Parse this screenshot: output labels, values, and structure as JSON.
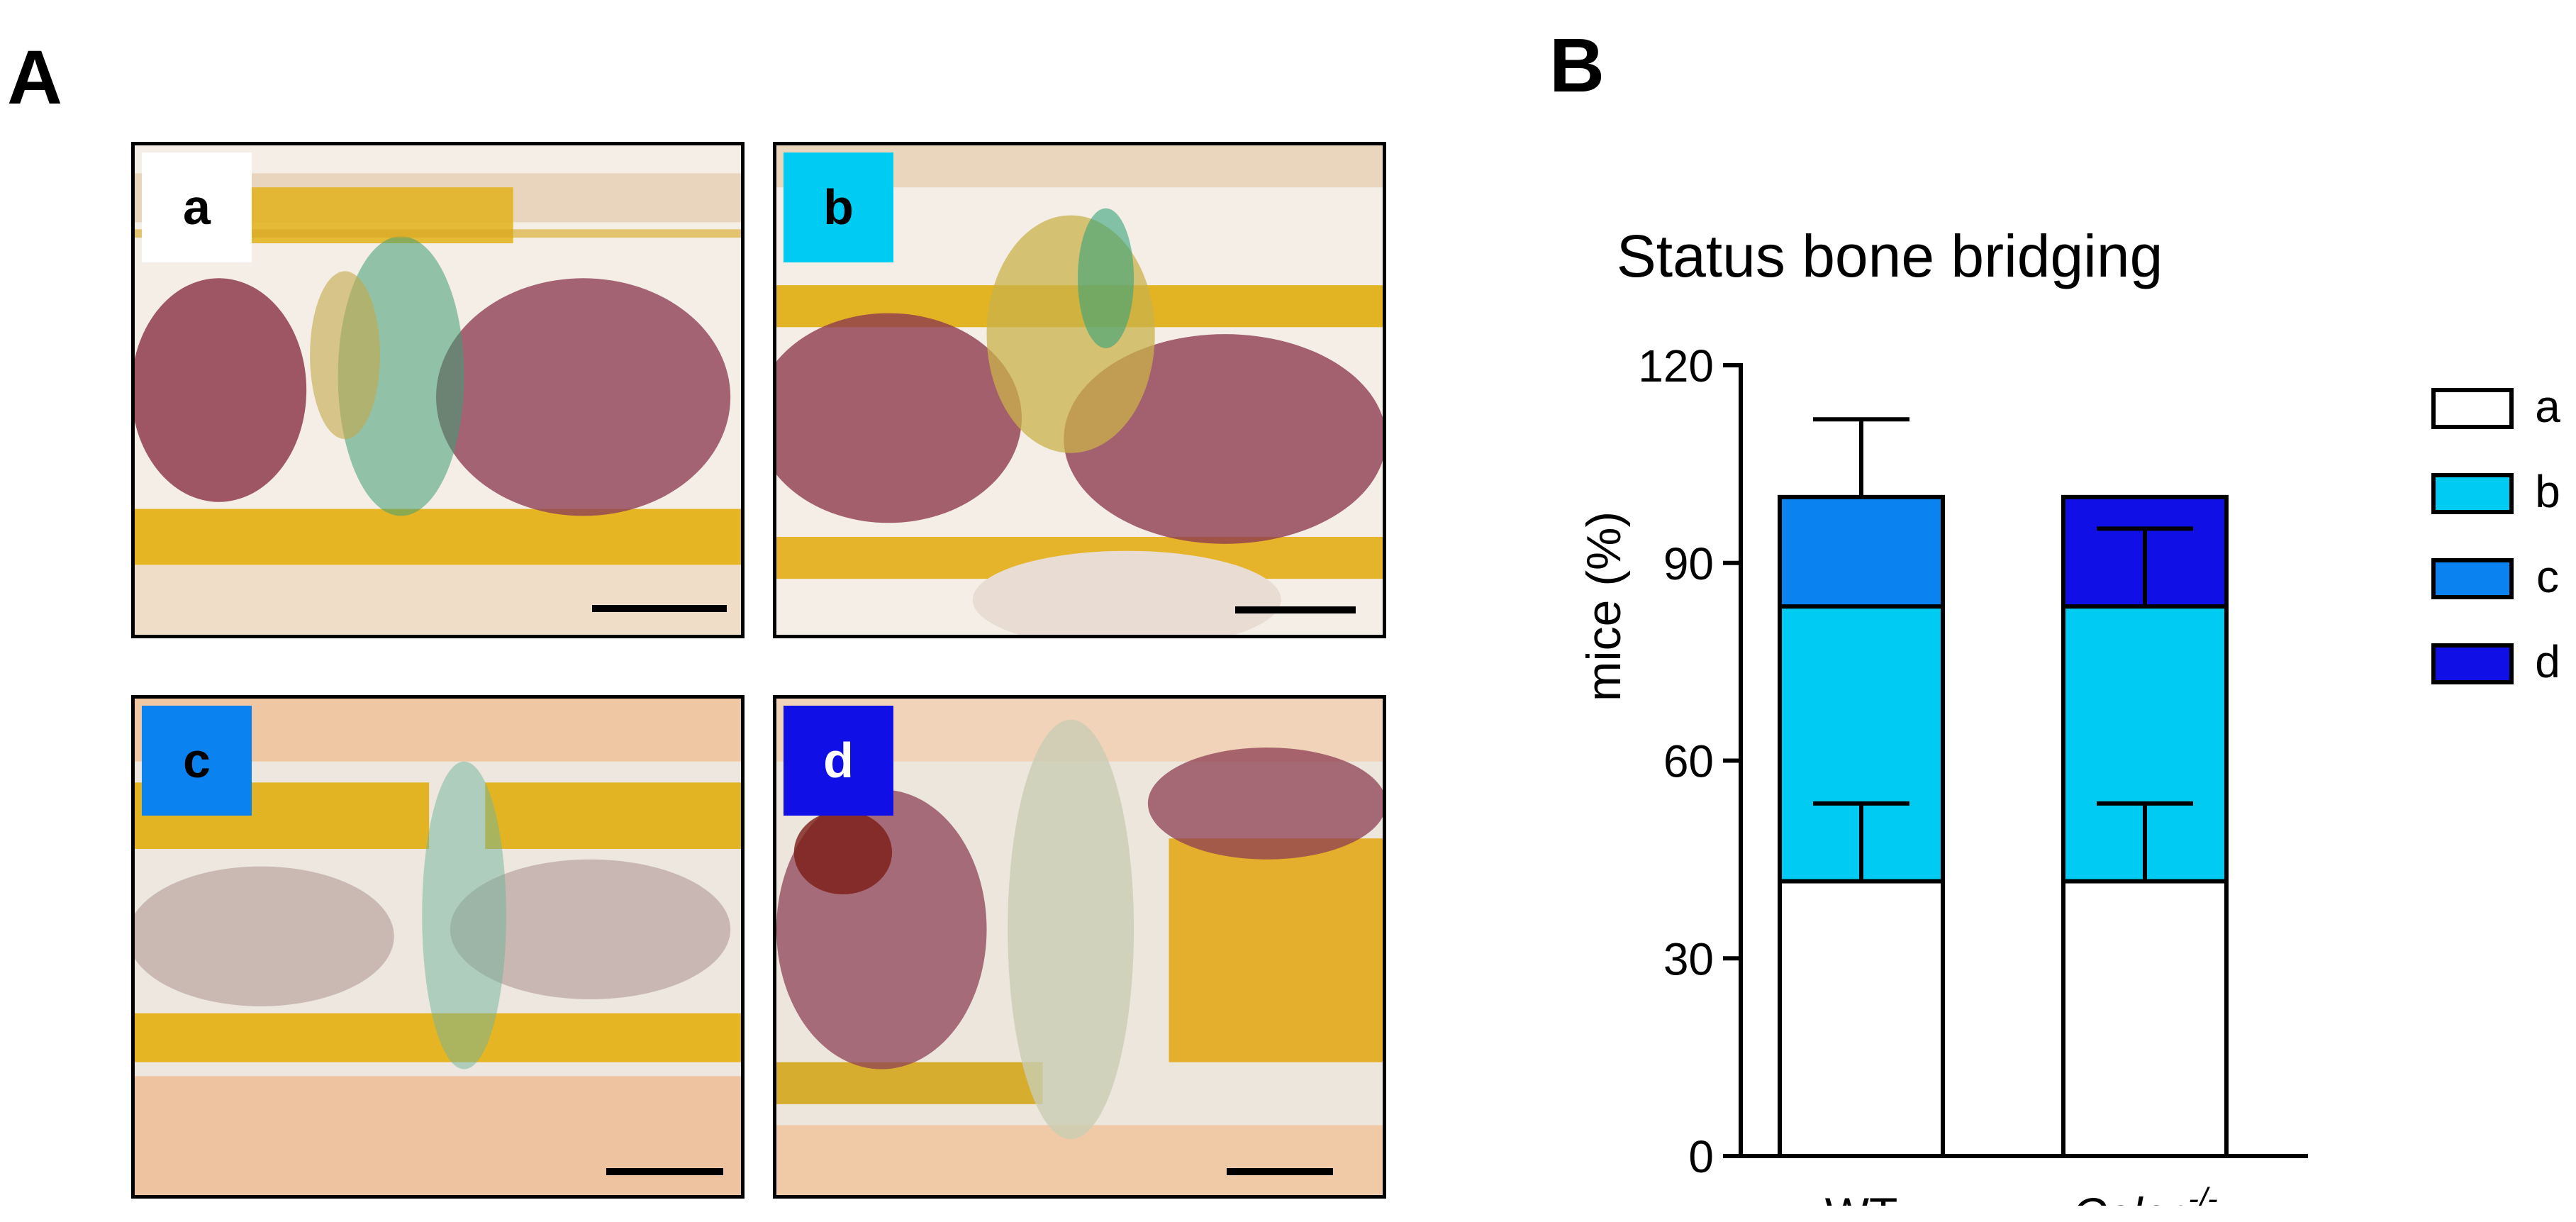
{
  "panels": {
    "a_label": "A",
    "b_label": "B"
  },
  "micrographs": [
    {
      "label": "a",
      "tile_color": "#ffffff",
      "text_color": "#000000"
    },
    {
      "label": "b",
      "tile_color": "#00cbf2",
      "text_color": "#000000"
    },
    {
      "label": "c",
      "tile_color": "#0a82f0",
      "text_color": "#000000"
    },
    {
      "label": "d",
      "tile_color": "#1010e6",
      "text_color": "#ffffff"
    }
  ],
  "chart_data": {
    "type": "bar",
    "stacked": true,
    "title": "Status bone bridging",
    "ylabel": "mice (%)",
    "xlabel": "",
    "ylim": [
      0,
      120
    ],
    "yticks": [
      "0",
      "30",
      "60",
      "90",
      "120"
    ],
    "categories": [
      {
        "text": "WT",
        "superscript": ""
      },
      {
        "text": "Calcr",
        "superscript": "-/-"
      }
    ],
    "series": [
      {
        "name": "a",
        "color": "#ffffff",
        "values": [
          41.7,
          41.7
        ]
      },
      {
        "name": "b",
        "color": "#00cbf2",
        "values": [
          41.7,
          41.7
        ]
      },
      {
        "name": "c",
        "color": "#0a82f0",
        "values": [
          16.6,
          0
        ]
      },
      {
        "name": "d",
        "color": "#1010e6",
        "values": [
          0,
          16.6
        ]
      }
    ],
    "error_bars": [
      {
        "series": "a",
        "values": [
          11.8,
          11.8
        ]
      },
      {
        "series": "c_or_d",
        "values": [
          11.8,
          11.8
        ]
      }
    ],
    "legend_position": "top-right",
    "grid": false
  }
}
